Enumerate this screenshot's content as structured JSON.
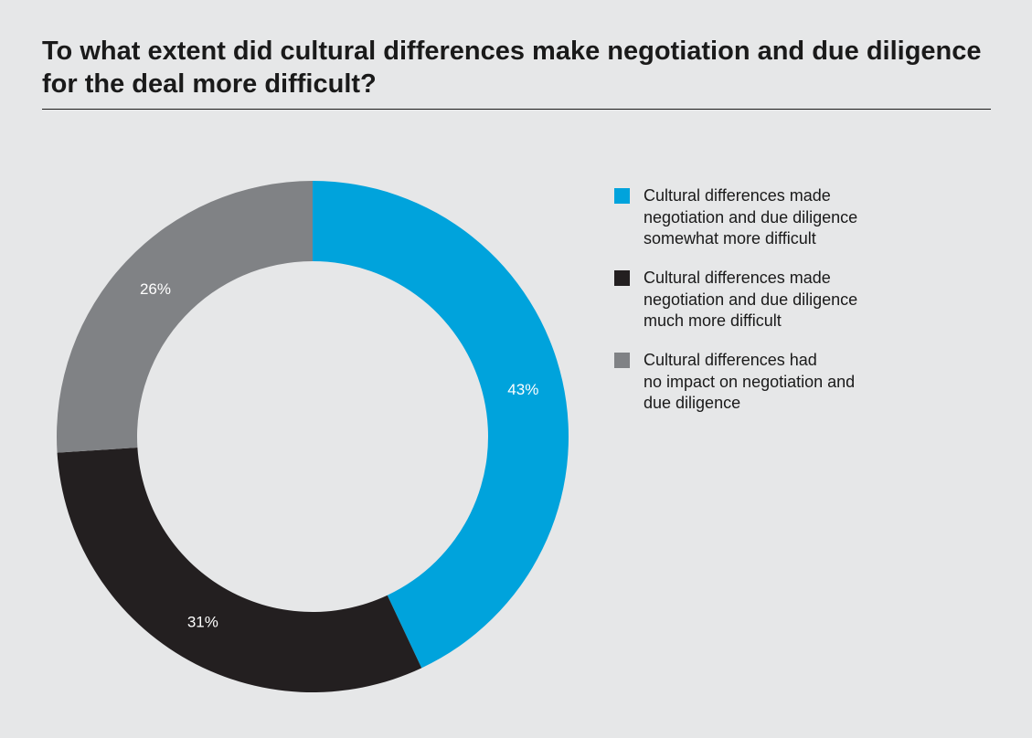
{
  "chart_data": {
    "type": "pie",
    "variant": "donut",
    "title": "To what extent did cultural differences make negotiation and due diligence for the deal more difficult?",
    "slices": [
      {
        "label": "Cultural differences made\nnegotiation and due diligence\nsomewhat more difficult",
        "value": 43,
        "display": "43%",
        "color": "#00a3dc"
      },
      {
        "label": "Cultural differences made\nnegotiation and due diligence\nmuch more difficult",
        "value": 31,
        "display": "31%",
        "color": "#231f20"
      },
      {
        "label": "Cultural differences had\nno impact on negotiation and\ndue diligence",
        "value": 26,
        "display": "26%",
        "color": "#808285"
      }
    ],
    "start": "12 o'clock",
    "direction": "clockwise",
    "legend_position": "right"
  }
}
